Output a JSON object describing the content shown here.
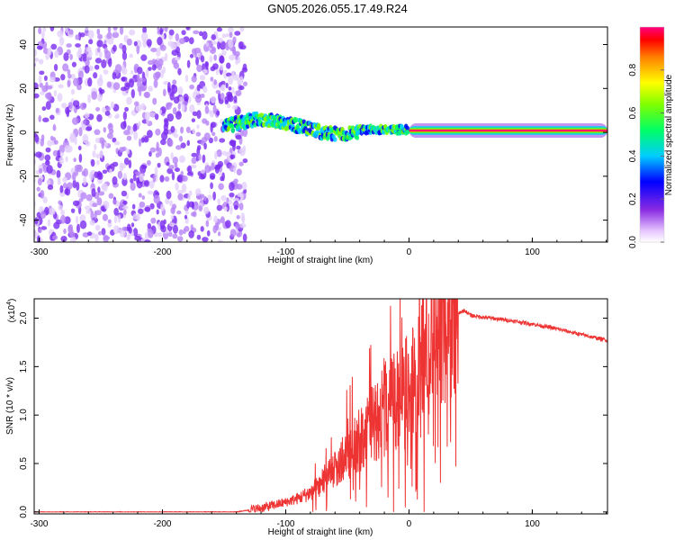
{
  "title": "GN05.2026.055.17.49.R24",
  "chart_data": [
    {
      "type": "heatmap",
      "xlabel": "Height of straight line (km)",
      "ylabel": "Frequency (Hz)",
      "xlim": [
        -304,
        161
      ],
      "ylim": [
        -50,
        48
      ],
      "xticks": [
        -300,
        -200,
        -100,
        0,
        100
      ],
      "xtick_labels": [
        "-300",
        "-200",
        "-100",
        "0",
        "100"
      ],
      "yticks": [
        -40,
        -20,
        0,
        20,
        40
      ],
      "ytick_labels": [
        "-40",
        "-20",
        "0",
        "20",
        "40"
      ],
      "colorbar": {
        "label": "Normalized spectral amplitude",
        "range": [
          0,
          1
        ],
        "ticks": [
          0.0,
          0.2,
          0.4,
          0.6,
          0.8
        ],
        "tick_labels": [
          "0.0",
          "0.2",
          "0.4",
          "0.6",
          "0.8"
        ]
      },
      "features": [
        {
          "name": "noise",
          "x_range": [
            -304,
            -140
          ],
          "y_range": [
            -50,
            48
          ],
          "amplitude": 0.1
        },
        {
          "name": "wavy-band",
          "x_range": [
            -150,
            0
          ],
          "center_hz": 0,
          "amplitude": 0.4
        },
        {
          "name": "strong-band",
          "x_range": [
            0,
            161
          ],
          "center_hz": 0,
          "amplitude": 0.95
        }
      ]
    },
    {
      "type": "line",
      "xlabel": "Height of straight line (km)",
      "ylabel": "SNR (10 * v/v)",
      "multiplier": "(x10",
      "multiplier_exp": "4",
      "multiplier_close": ")",
      "xlim": [
        -304,
        161
      ],
      "ylim": [
        -0.02,
        2.2
      ],
      "xticks": [
        -300,
        -200,
        -100,
        0,
        100
      ],
      "xtick_labels": [
        "-300",
        "-200",
        "-100",
        "0",
        "100"
      ],
      "yticks": [
        0.0,
        0.5,
        1.0,
        1.5,
        2.0
      ],
      "ytick_labels": [
        "0.0",
        "0.5",
        "1.0",
        "1.5",
        "2.0"
      ],
      "color": "#ee3333",
      "series": [
        {
          "name": "SNR",
          "x": [
            -304,
            -250,
            -200,
            -160,
            -140,
            -130,
            -120,
            -110,
            -100,
            -90,
            -80,
            -70,
            -60,
            -50,
            -40,
            -30,
            -20,
            -10,
            0,
            10,
            20,
            30,
            40,
            45,
            50,
            60,
            80,
            100,
            120,
            140,
            161
          ],
          "y": [
            0.0,
            0.0,
            0.0,
            0.0,
            0.0,
            0.02,
            0.04,
            0.07,
            0.1,
            0.14,
            0.2,
            0.3,
            0.45,
            0.6,
            0.75,
            0.9,
            1.05,
            1.15,
            1.3,
            1.55,
            1.8,
            1.98,
            2.05,
            2.08,
            2.03,
            2.01,
            1.98,
            1.94,
            1.89,
            1.83,
            1.77
          ]
        }
      ]
    }
  ]
}
